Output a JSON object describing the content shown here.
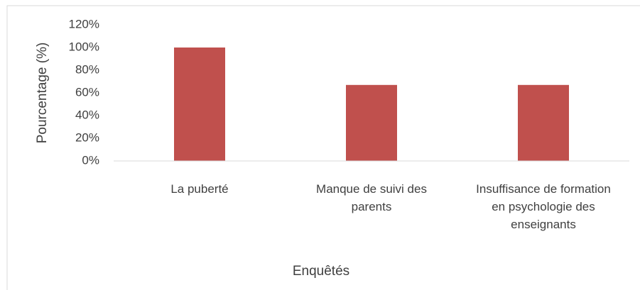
{
  "chart_data": {
    "type": "bar",
    "categories": [
      "La puberté",
      "Manque de suivi des parents",
      "Insuffisance de formation en psychologie des enseignants"
    ],
    "values": [
      100,
      67,
      67
    ],
    "color": "#c0504d",
    "ylabel": "Pourcentage (%)",
    "xlabel": "Enquêtés",
    "ylim": [
      0,
      120
    ],
    "yticks": [
      {
        "value": 0,
        "label": "0%"
      },
      {
        "value": 20,
        "label": "20%"
      },
      {
        "value": 40,
        "label": "40%"
      },
      {
        "value": 60,
        "label": "60%"
      },
      {
        "value": 80,
        "label": "80%"
      },
      {
        "value": 100,
        "label": "100%"
      },
      {
        "value": 120,
        "label": "120%"
      }
    ],
    "grid": false
  }
}
